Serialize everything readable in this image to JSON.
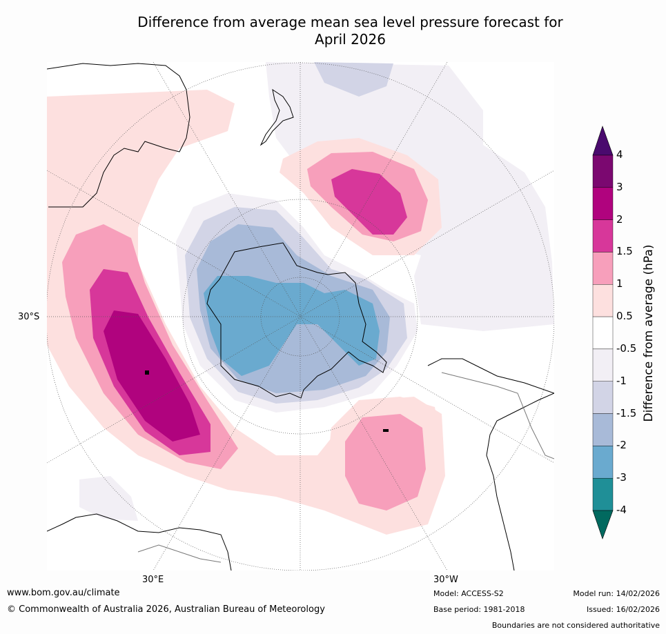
{
  "title_line1": "Difference from average mean sea level pressure forecast for",
  "title_line2": "April 2026",
  "grid_labels": {
    "lat": "30°S",
    "lon_east": "30°E",
    "lon_west": "30°W"
  },
  "colorbar": {
    "title": "Difference from average (hPa)",
    "ticks": [
      "4",
      "3",
      "2",
      "1.5",
      "1",
      "0.5",
      "-0.5",
      "-1",
      "-1.5",
      "-2",
      "-3",
      "-4"
    ],
    "colors": [
      "#4a0a6e",
      "#7b0870",
      "#b0037e",
      "#d7379a",
      "#f79fbb",
      "#fde0df",
      "#ffffff",
      "#f2eff5",
      "#d2d4e6",
      "#a8bad8",
      "#6aaacf",
      "#1f8f97",
      "#01695f"
    ]
  },
  "footer": {
    "website": "www.bom.gov.au/climate",
    "copyright": "© Commonwealth of Australia 2026, Australian Bureau of Meteorology",
    "model": "Model: ACCESS-S2",
    "base_period": "Base period: 1981-2018",
    "model_run": "Model run: 14/02/2026",
    "issued": "Issued: 16/02/2026",
    "boundaries": "Boundaries are not considered authoritative"
  }
}
